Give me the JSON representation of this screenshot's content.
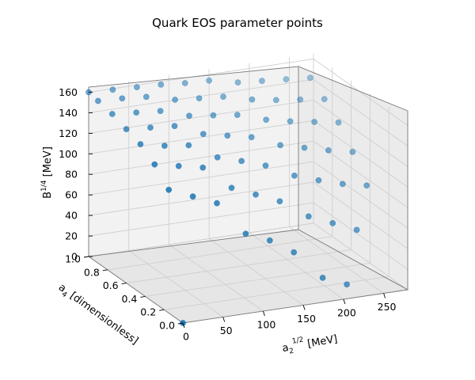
{
  "chart_data": {
    "type": "scatter",
    "title": "Quark EOS parameter points",
    "projection": "3d",
    "x_label": {
      "main": "a",
      "sub": "2",
      "sup": "1/2",
      "unit": " [MeV]"
    },
    "y_label": {
      "main": "a",
      "sub": "4",
      "unit": " [dimensionless]"
    },
    "z_label": {
      "main": "B",
      "sup": "1/4",
      "unit": " [MeV]"
    },
    "x_ticks": [
      "0",
      "50",
      "100",
      "150",
      "200",
      "250"
    ],
    "y_ticks": [
      "0.0",
      "0.2",
      "0.4",
      "0.6",
      "0.8",
      "1.0"
    ],
    "z_ticks": [
      "0",
      "20",
      "40",
      "60",
      "80",
      "100",
      "120",
      "140",
      "160"
    ],
    "xlim": [
      0,
      280
    ],
    "ylim": [
      0,
      1
    ],
    "zlim": [
      0,
      165
    ],
    "color": "#1f77b4",
    "grid": true,
    "series": [
      {
        "points": [
          [
            0,
            0,
            0
          ],
          [
            0,
            0.15,
            120
          ],
          [
            0,
            0.3,
            135
          ],
          [
            0,
            0.45,
            145
          ],
          [
            0,
            0.6,
            150
          ],
          [
            0,
            0.75,
            155
          ],
          [
            0,
            0.9,
            158
          ],
          [
            0,
            1.0,
            160
          ],
          [
            30,
            0.15,
            110
          ],
          [
            30,
            0.3,
            130
          ],
          [
            30,
            0.45,
            140
          ],
          [
            30,
            0.6,
            148
          ],
          [
            30,
            0.75,
            153
          ],
          [
            30,
            0.9,
            157
          ],
          [
            30,
            1.0,
            159
          ],
          [
            60,
            0.15,
            100
          ],
          [
            60,
            0.3,
            125
          ],
          [
            60,
            0.45,
            137
          ],
          [
            60,
            0.6,
            146
          ],
          [
            60,
            0.75,
            151
          ],
          [
            60,
            0.9,
            155
          ],
          [
            60,
            1.0,
            158
          ],
          [
            90,
            0.1,
            70
          ],
          [
            90,
            0.25,
            105
          ],
          [
            90,
            0.4,
            125
          ],
          [
            90,
            0.55,
            138
          ],
          [
            90,
            0.7,
            146
          ],
          [
            90,
            0.85,
            152
          ],
          [
            90,
            1.0,
            157
          ],
          [
            120,
            0.1,
            60
          ],
          [
            120,
            0.25,
            95
          ],
          [
            120,
            0.4,
            118
          ],
          [
            120,
            0.55,
            133
          ],
          [
            120,
            0.7,
            143
          ],
          [
            120,
            0.85,
            150
          ],
          [
            120,
            1.0,
            155
          ],
          [
            150,
            0.1,
            45
          ],
          [
            150,
            0.25,
            85
          ],
          [
            150,
            0.4,
            110
          ],
          [
            150,
            0.55,
            128
          ],
          [
            150,
            0.7,
            140
          ],
          [
            150,
            0.85,
            148
          ],
          [
            150,
            1.0,
            154
          ],
          [
            180,
            0.05,
            20
          ],
          [
            180,
            0.2,
            70
          ],
          [
            180,
            0.35,
            100
          ],
          [
            180,
            0.5,
            120
          ],
          [
            180,
            0.65,
            135
          ],
          [
            180,
            0.8,
            145
          ],
          [
            180,
            0.95,
            152
          ],
          [
            210,
            0.05,
            10
          ],
          [
            210,
            0.2,
            60
          ],
          [
            210,
            0.35,
            92
          ],
          [
            210,
            0.5,
            114
          ],
          [
            210,
            0.65,
            130
          ],
          [
            210,
            0.8,
            141
          ],
          [
            210,
            0.95,
            150
          ],
          [
            240,
            0.2,
            50
          ],
          [
            240,
            0.35,
            85
          ],
          [
            240,
            0.5,
            108
          ],
          [
            240,
            0.65,
            126
          ],
          [
            240,
            0.8,
            138
          ],
          [
            240,
            0.95,
            148
          ],
          [
            270,
            0.35,
            80
          ],
          [
            270,
            0.5,
            103
          ],
          [
            270,
            0.65,
            122
          ],
          [
            270,
            0.8,
            135
          ],
          [
            270,
            0.95,
            146
          ]
        ]
      }
    ]
  }
}
